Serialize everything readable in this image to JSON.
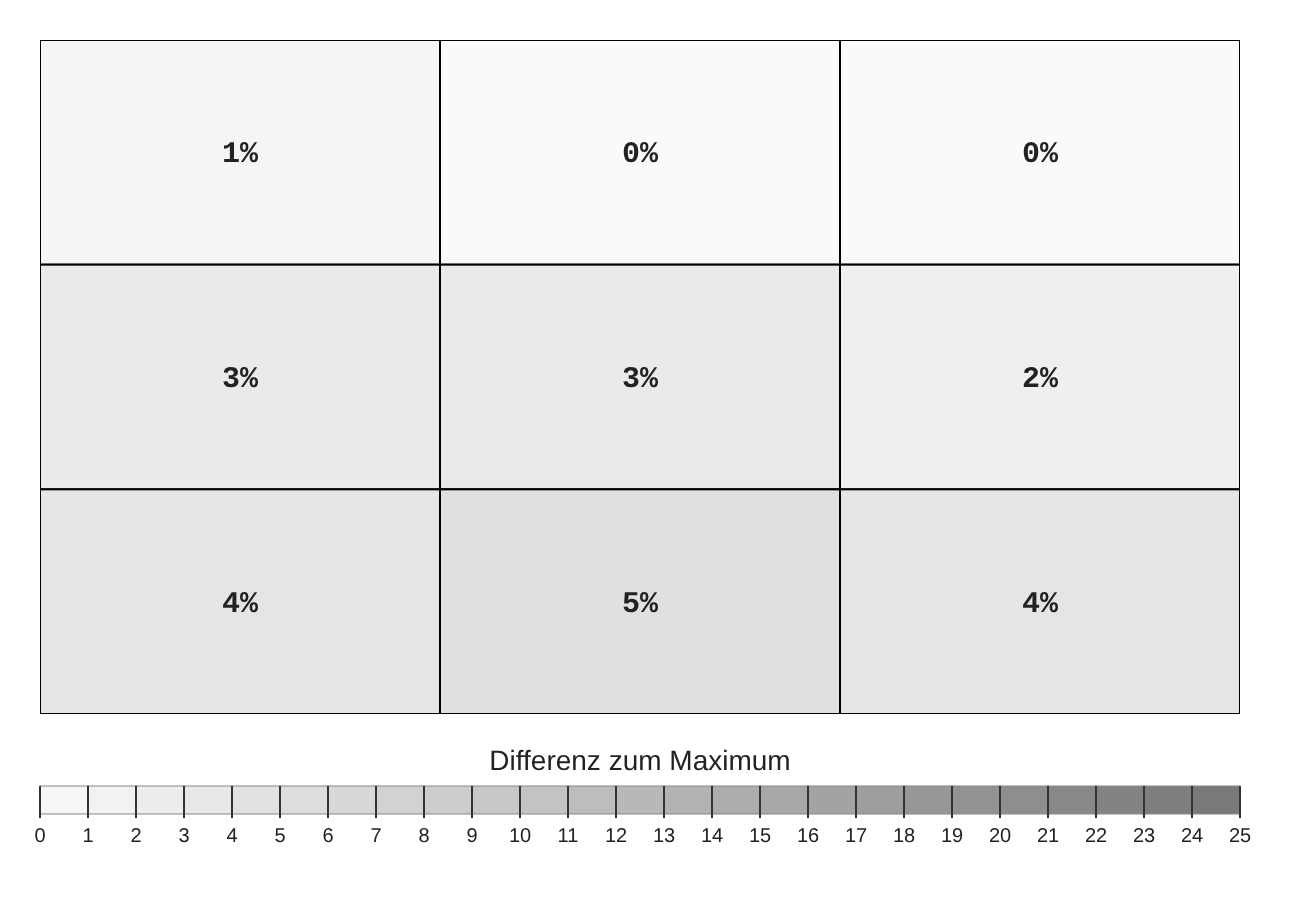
{
  "chart_data": {
    "type": "heatmap",
    "categories": [
      null,
      null,
      null
    ],
    "y_categories": [
      null,
      null,
      null
    ],
    "cells": [
      [
        1,
        0,
        0
      ],
      [
        3,
        3,
        2
      ],
      [
        4,
        5,
        4
      ]
    ],
    "cell_labels": [
      [
        "1%",
        "0%",
        "0%"
      ],
      [
        "3%",
        "3%",
        "2%"
      ],
      [
        "4%",
        "5%",
        "4%"
      ]
    ],
    "clabel": "Differenz zum Maximum",
    "clim": [
      0,
      25
    ],
    "cticks": [
      0,
      1,
      2,
      3,
      4,
      5,
      6,
      7,
      8,
      9,
      10,
      11,
      12,
      13,
      14,
      15,
      16,
      17,
      18,
      19,
      20,
      21,
      22,
      23,
      24,
      25
    ]
  }
}
